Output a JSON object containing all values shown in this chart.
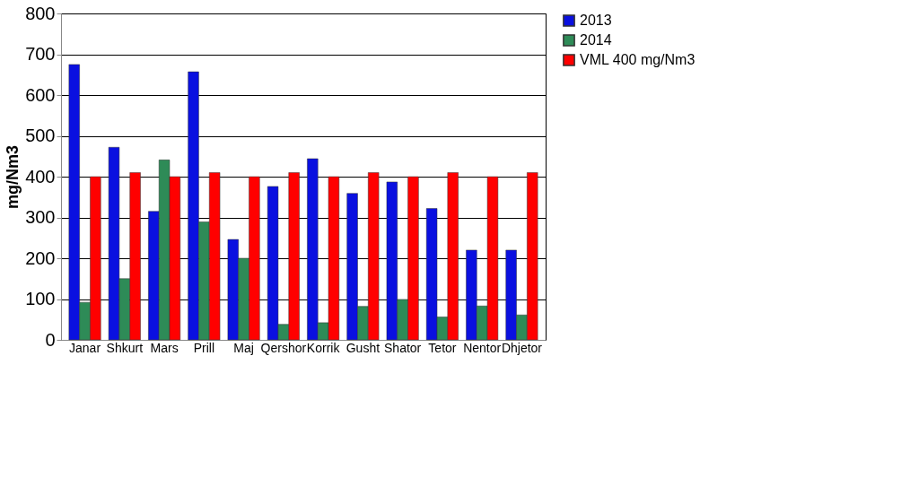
{
  "chart_data": {
    "type": "bar",
    "ylabel": "mg/Nm3",
    "categories": [
      "Janar",
      "Shkurt",
      "Mars",
      "Prill",
      "Maj",
      "Qershor",
      "Korrik",
      "Gusht",
      "Shator",
      "Tetor",
      "Nentor",
      "Dhjetor"
    ],
    "series": [
      {
        "name": "2013",
        "color": "#0a10e0",
        "values": [
          675,
          472,
          315,
          657,
          246,
          376,
          444,
          359,
          387,
          322,
          220,
          220
        ]
      },
      {
        "name": "2014",
        "color": "#2e8b57",
        "values": [
          92,
          150,
          441,
          289,
          200,
          38,
          42,
          82,
          99,
          56,
          83,
          61
        ]
      },
      {
        "name": "VML 400 mg/Nm3",
        "color": "#ff0000",
        "values": [
          400,
          410,
          400,
          410,
          400,
          410,
          400,
          410,
          400,
          410,
          400,
          410
        ]
      }
    ],
    "ylim": [
      0,
      800
    ],
    "yticks": [
      0,
      100,
      200,
      300,
      400,
      500,
      600,
      700,
      800
    ],
    "grid": "y",
    "legend": "right"
  }
}
